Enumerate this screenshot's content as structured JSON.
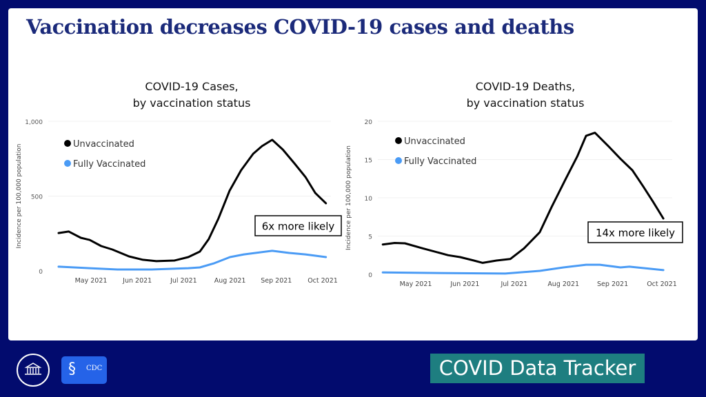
{
  "slide_title": "Vaccination decreases COVID-19 cases and deaths",
  "footer": {
    "tracker_label": "COVID Data Tracker",
    "logos": [
      "white-house-logo",
      "cdc-logo"
    ],
    "cdc_text": "CDC"
  },
  "colors": {
    "background": "#020B6E",
    "unvaccinated": "#000000",
    "vaccinated": "#4A9BF5",
    "tracker": "#1E7E80"
  },
  "chart_data": [
    {
      "type": "line",
      "title": [
        "COVID-19 Cases,",
        "by vaccination status"
      ],
      "xlabel": "",
      "ylabel": "Incidence per 100,000 population",
      "ylim": [
        0,
        1000
      ],
      "yticks": [
        0,
        500,
        1000
      ],
      "ytick_labels": [
        "0",
        "500",
        "1,000"
      ],
      "x_unit": "month of 2021 (5 = May 1)",
      "xticks": [
        5,
        6,
        7,
        8,
        9,
        10
      ],
      "xtick_labels": [
        "May 2021",
        "Jun 2021",
        "Jul 2021",
        "Aug 2021",
        "Sep 2021",
        "Oct 2021"
      ],
      "grid": true,
      "legend": "top-left",
      "annotation": "6x more likely",
      "series": [
        {
          "name": "Unvaccinated",
          "color": "#000000",
          "x": [
            4.3,
            4.52,
            4.78,
            4.97,
            5.22,
            5.46,
            5.82,
            6.12,
            6.41,
            6.8,
            7.1,
            7.35,
            7.54,
            7.75,
            7.99,
            8.24,
            8.5,
            8.69,
            8.91,
            9.14,
            9.39,
            9.63,
            9.84,
            10.07
          ],
          "y": [
            253,
            263,
            221,
            207,
            166,
            143,
            97,
            74,
            65,
            69,
            92,
            129,
            212,
            350,
            535,
            673,
            783,
            834,
            876,
            811,
            719,
            627,
            521,
            452
          ]
        },
        {
          "name": "Fully Vaccinated",
          "color": "#4A9BF5",
          "x": [
            4.3,
            4.97,
            5.57,
            6.31,
            7.1,
            7.35,
            7.66,
            8.0,
            8.3,
            8.91,
            9.28,
            9.63,
            10.07
          ],
          "y": [
            28,
            18,
            9,
            9,
            18,
            23,
            51,
            92,
            110,
            134,
            120,
            110,
            92
          ]
        }
      ]
    },
    {
      "type": "line",
      "title": [
        "COVID-19 Deaths,",
        "by vaccination status"
      ],
      "xlabel": "",
      "ylabel": "Incidence per 100,000 population",
      "ylim": [
        0,
        20
      ],
      "yticks": [
        0,
        5,
        10,
        15,
        20
      ],
      "ytick_labels": [
        "0",
        "5",
        "10",
        "15",
        "20"
      ],
      "x_unit": "month of 2021 (5 = May 1)",
      "xticks": [
        5,
        6,
        7,
        8,
        9,
        10
      ],
      "xtick_labels": [
        "May 2021",
        "Jun 2021",
        "Jul 2021",
        "Aug 2021",
        "Sep 2021",
        "Oct 2021"
      ],
      "grid": true,
      "legend": "top-left",
      "annotation": "14x more likely",
      "series": [
        {
          "name": "Unvaccinated",
          "color": "#000000",
          "x": [
            4.33,
            4.57,
            4.78,
            5.14,
            5.66,
            5.9,
            6.18,
            6.36,
            6.64,
            6.92,
            7.2,
            7.52,
            7.76,
            8.04,
            8.28,
            8.46,
            8.64,
            8.92,
            9.16,
            9.4,
            9.62,
            9.82,
            10.03
          ],
          "y": [
            3.9,
            4.1,
            4.05,
            3.4,
            2.5,
            2.25,
            1.8,
            1.5,
            1.8,
            2.0,
            3.4,
            5.5,
            8.8,
            12.4,
            15.4,
            18.1,
            18.5,
            16.7,
            15.1,
            13.6,
            11.5,
            9.5,
            7.3
          ]
        },
        {
          "name": "Fully Vaccinated",
          "color": "#4A9BF5",
          "x": [
            4.33,
            5.66,
            6.82,
            7.52,
            8.0,
            8.46,
            8.74,
            9.16,
            9.34,
            10.03
          ],
          "y": [
            0.25,
            0.15,
            0.1,
            0.45,
            0.9,
            1.25,
            1.25,
            0.9,
            1.0,
            0.55
          ]
        }
      ]
    }
  ]
}
